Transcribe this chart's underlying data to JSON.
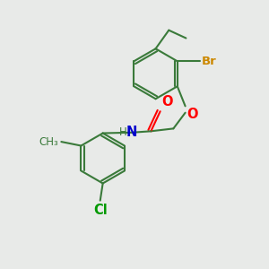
{
  "bg_color": "#e8eae8",
  "bond_color": "#3a7a3a",
  "bond_width": 1.5,
  "atom_colors": {
    "O": "#ff0000",
    "N": "#0000cc",
    "Br": "#cc8800",
    "Cl": "#009900",
    "C": "#3a7a3a",
    "H": "#3a7a3a"
  },
  "font_size": 9.5
}
